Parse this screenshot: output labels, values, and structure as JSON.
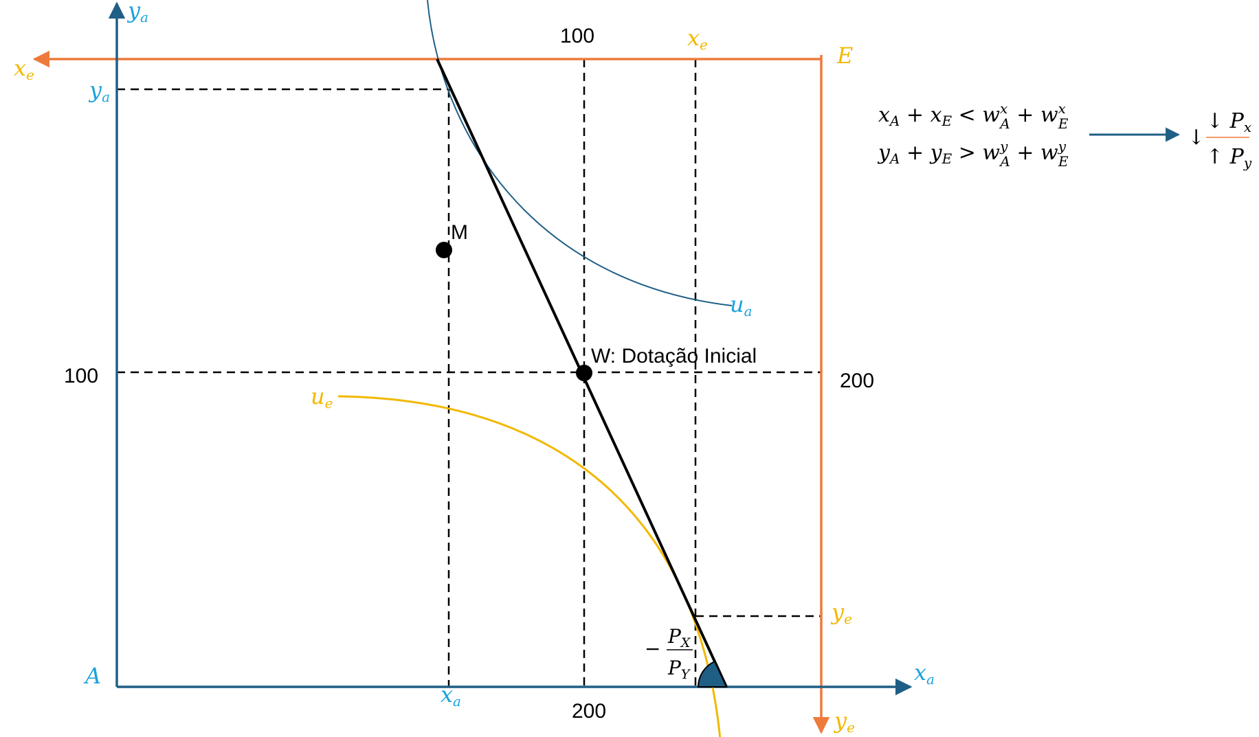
{
  "diagram": {
    "type": "edgeworth-box",
    "colors": {
      "agent_a_axis": "#1f5f86",
      "agent_a_label": "#1aa3dc",
      "agent_e_axis": "#ee7a3c",
      "agent_e_label": "#f2b800",
      "indifference_a": "#1f5f86",
      "indifference_e": "#f2b800",
      "budget_line": "#000000",
      "angle_fill": "#1f5f86",
      "guides": "#000000"
    },
    "origin_a_label": "A",
    "origin_e_label": "E",
    "axes": {
      "a_vertical_label": "ya",
      "a_horizontal_label": "xa",
      "e_horizontal_label": "xe",
      "e_vertical_label": "ye"
    },
    "marks": {
      "ya_tick_label": "ya",
      "xa_tick_label": "xa",
      "xe_tick_label": "xe",
      "ye_tick_label": "ye"
    },
    "numbers": {
      "top_100": "100",
      "left_100": "100",
      "right_200": "200",
      "bottom_200": "200"
    },
    "points": {
      "M": "M",
      "W": "W: Dotação Inicial"
    },
    "curves": {
      "ua": "ua",
      "ue": "ue"
    },
    "slope_label": {
      "sign": "−",
      "numerator": "PX",
      "denominator": "PY"
    },
    "inequalities": {
      "line1": "xA + xE < wAx + wEx",
      "line2": "yA + yE > wAy + wEy",
      "result": "↓ Px / ↑ Py"
    }
  }
}
